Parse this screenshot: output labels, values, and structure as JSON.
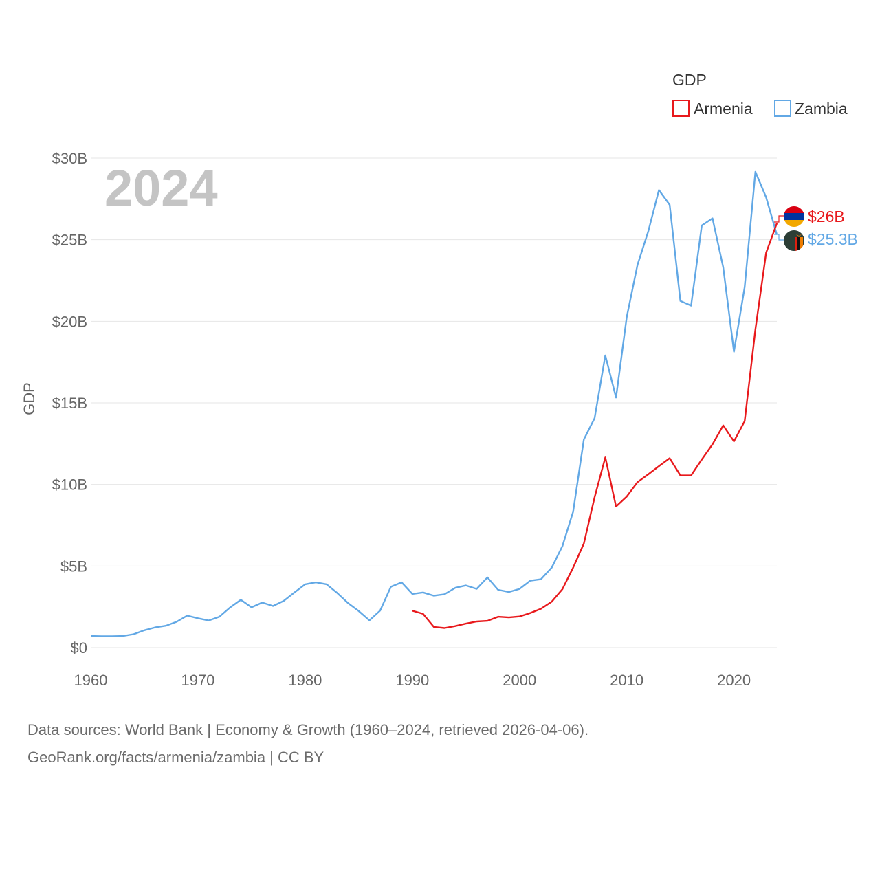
{
  "chart_data": {
    "type": "line",
    "title": "",
    "xlabel": "",
    "ylabel": "GDP",
    "current_year": "2024",
    "xlim": [
      1960,
      2024
    ],
    "ylim": [
      0,
      30
    ],
    "x_ticks": [
      1960,
      1970,
      1980,
      1990,
      2000,
      2010,
      2020
    ],
    "x_tick_labels": [
      "1960",
      "1970",
      "1980",
      "1990",
      "2000",
      "2010",
      "2020"
    ],
    "y_ticks": [
      0,
      5,
      10,
      15,
      20,
      25,
      30
    ],
    "y_tick_labels": [
      "$0",
      "$5B",
      "$10B",
      "$15B",
      "$20B",
      "$25B",
      "$30B"
    ],
    "legend": {
      "title": "GDP",
      "position": "top-right"
    },
    "series": [
      {
        "name": "Armenia",
        "color": "#e8191c",
        "end_label": "$26B",
        "flag_icon": "armenia-flag-icon",
        "x": [
          1990,
          1991,
          1992,
          1993,
          1994,
          1995,
          1996,
          1997,
          1998,
          1999,
          2000,
          2001,
          2002,
          2003,
          2004,
          2005,
          2006,
          2007,
          2008,
          2009,
          2010,
          2011,
          2012,
          2013,
          2014,
          2015,
          2016,
          2017,
          2018,
          2019,
          2020,
          2021,
          2022,
          2023,
          2024
        ],
        "values": [
          2.26,
          2.07,
          1.27,
          1.2,
          1.32,
          1.47,
          1.6,
          1.64,
          1.89,
          1.85,
          1.91,
          2.12,
          2.38,
          2.81,
          3.58,
          4.9,
          6.38,
          9.21,
          11.66,
          8.65,
          9.26,
          10.14,
          10.62,
          11.12,
          11.61,
          10.55,
          10.55,
          11.53,
          12.46,
          13.62,
          12.64,
          13.88,
          19.5,
          24.2,
          26.0
        ]
      },
      {
        "name": "Zambia",
        "color": "#62a8e5",
        "end_label": "$25.3B",
        "flag_icon": "zambia-flag-icon",
        "x": [
          1960,
          1961,
          1962,
          1963,
          1964,
          1965,
          1966,
          1967,
          1968,
          1969,
          1970,
          1971,
          1972,
          1973,
          1974,
          1975,
          1976,
          1977,
          1978,
          1979,
          1980,
          1981,
          1982,
          1983,
          1984,
          1985,
          1986,
          1987,
          1988,
          1989,
          1990,
          1991,
          1992,
          1993,
          1994,
          1995,
          1996,
          1997,
          1998,
          1999,
          2000,
          2001,
          2002,
          2003,
          2004,
          2005,
          2006,
          2007,
          2008,
          2009,
          2010,
          2011,
          2012,
          2013,
          2014,
          2015,
          2016,
          2017,
          2018,
          2019,
          2020,
          2021,
          2022,
          2023,
          2024
        ],
        "values": [
          0.71,
          0.7,
          0.7,
          0.71,
          0.82,
          1.06,
          1.24,
          1.34,
          1.58,
          1.96,
          1.8,
          1.66,
          1.89,
          2.46,
          2.93,
          2.47,
          2.76,
          2.55,
          2.86,
          3.38,
          3.88,
          4.0,
          3.88,
          3.34,
          2.73,
          2.24,
          1.67,
          2.27,
          3.73,
          4.0,
          3.29,
          3.38,
          3.18,
          3.27,
          3.66,
          3.81,
          3.6,
          4.3,
          3.54,
          3.41,
          3.6,
          4.1,
          4.19,
          4.9,
          6.22,
          8.33,
          12.76,
          14.06,
          17.91,
          15.33,
          20.27,
          23.46,
          25.5,
          28.04,
          27.14,
          21.25,
          20.96,
          25.87,
          26.31,
          23.31,
          18.14,
          22.1,
          29.16,
          27.6,
          25.3
        ]
      }
    ]
  },
  "footer": {
    "source_line1": "Data sources: World Bank | Economy & Growth (1960–2024, retrieved 2026-04-06).",
    "source_line2": "GeoRank.org/facts/armenia/zambia | CC BY"
  }
}
